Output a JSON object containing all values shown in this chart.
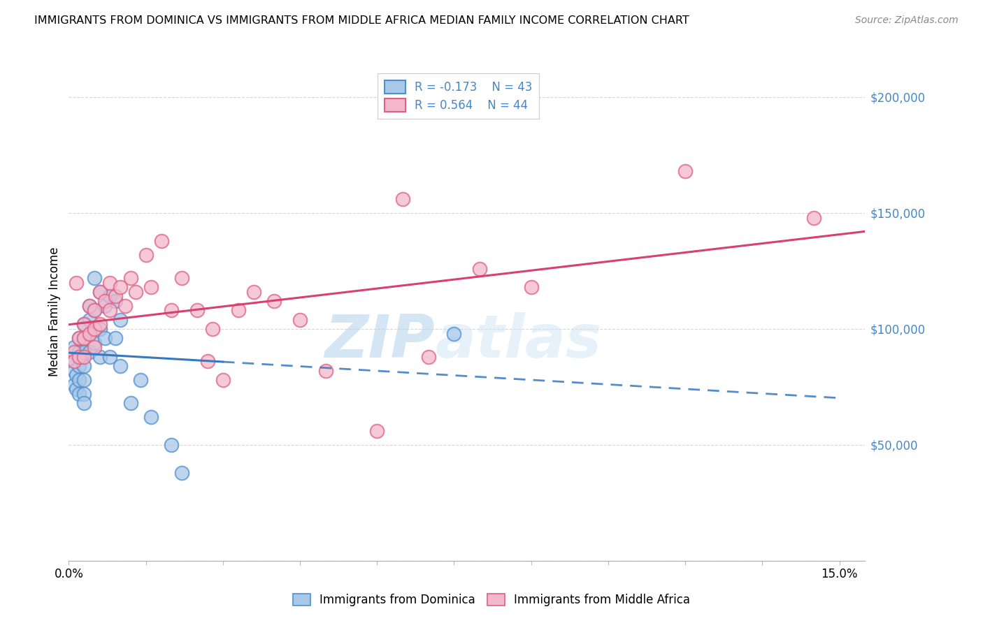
{
  "title": "IMMIGRANTS FROM DOMINICA VS IMMIGRANTS FROM MIDDLE AFRICA MEDIAN FAMILY INCOME CORRELATION CHART",
  "source": "Source: ZipAtlas.com",
  "ylabel": "Median Family Income",
  "xlim": [
    0.0,
    0.155
  ],
  "ylim": [
    0,
    215000
  ],
  "yticks": [
    0,
    50000,
    100000,
    150000,
    200000
  ],
  "ytick_labels": [
    "",
    "$50,000",
    "$100,000",
    "$150,000",
    "$200,000"
  ],
  "xticks": [
    0.0,
    0.015,
    0.03,
    0.045,
    0.06,
    0.075,
    0.09,
    0.105,
    0.12,
    0.135,
    0.15
  ],
  "dominica_color": "#a8c8e8",
  "middle_africa_color": "#f4b8cc",
  "dominica_edge_color": "#5090d0",
  "middle_africa_edge_color": "#e06080",
  "dominica_line_color": "#3878c0",
  "middle_africa_line_color": "#d84070",
  "dominica_r": -0.173,
  "dominica_n": 43,
  "middle_africa_r": 0.564,
  "middle_africa_n": 44,
  "watermark_zip": "ZIP",
  "watermark_atlas": "atlas",
  "dominica_x": [
    0.001,
    0.001,
    0.001,
    0.001,
    0.0015,
    0.0015,
    0.002,
    0.002,
    0.002,
    0.002,
    0.002,
    0.0025,
    0.003,
    0.003,
    0.003,
    0.003,
    0.003,
    0.003,
    0.003,
    0.004,
    0.004,
    0.004,
    0.004,
    0.005,
    0.005,
    0.005,
    0.006,
    0.006,
    0.006,
    0.007,
    0.007,
    0.008,
    0.008,
    0.009,
    0.009,
    0.01,
    0.01,
    0.012,
    0.014,
    0.016,
    0.02,
    0.022,
    0.075
  ],
  "dominica_y": [
    92000,
    86000,
    82000,
    76000,
    80000,
    74000,
    96000,
    90000,
    84000,
    78000,
    72000,
    88000,
    102000,
    96000,
    90000,
    84000,
    78000,
    72000,
    68000,
    110000,
    104000,
    98000,
    90000,
    122000,
    108000,
    94000,
    116000,
    100000,
    88000,
    110000,
    96000,
    114000,
    88000,
    112000,
    96000,
    104000,
    84000,
    68000,
    78000,
    62000,
    50000,
    38000,
    98000
  ],
  "middle_africa_x": [
    0.001,
    0.001,
    0.0015,
    0.002,
    0.002,
    0.003,
    0.003,
    0.003,
    0.004,
    0.004,
    0.005,
    0.005,
    0.005,
    0.006,
    0.006,
    0.007,
    0.008,
    0.008,
    0.009,
    0.01,
    0.011,
    0.012,
    0.013,
    0.015,
    0.016,
    0.018,
    0.02,
    0.022,
    0.025,
    0.027,
    0.028,
    0.03,
    0.033,
    0.036,
    0.04,
    0.045,
    0.05,
    0.06,
    0.065,
    0.07,
    0.08,
    0.09,
    0.12,
    0.145
  ],
  "middle_africa_y": [
    90000,
    86000,
    120000,
    96000,
    88000,
    102000,
    96000,
    88000,
    110000,
    98000,
    108000,
    100000,
    92000,
    116000,
    102000,
    112000,
    120000,
    108000,
    114000,
    118000,
    110000,
    122000,
    116000,
    132000,
    118000,
    138000,
    108000,
    122000,
    108000,
    86000,
    100000,
    78000,
    108000,
    116000,
    112000,
    104000,
    82000,
    56000,
    156000,
    88000,
    126000,
    118000,
    168000,
    148000
  ]
}
